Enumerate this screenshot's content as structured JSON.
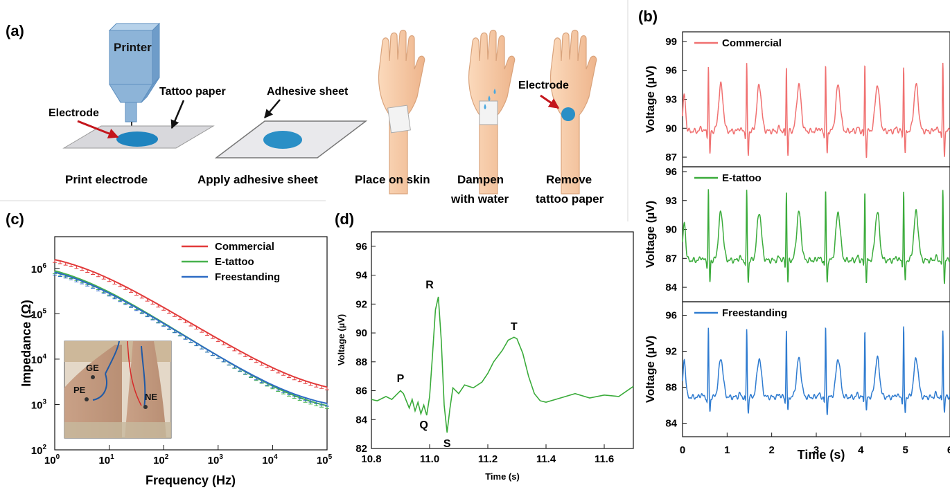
{
  "panel_labels": {
    "a": "(a)",
    "b": "(b)",
    "c": "(c)",
    "d": "(d)"
  },
  "panel_a": {
    "printer_label": "Printer",
    "tattoo_paper_label": "Tattoo paper",
    "electrode_label": "Electrode",
    "adhesive_sheet_label": "Adhesive sheet",
    "electrode_label_2": "Electrode",
    "steps": [
      {
        "line1": "Print electrode",
        "line2": ""
      },
      {
        "line1": "Apply adhesive sheet",
        "line2": ""
      },
      {
        "line1": "Place on skin",
        "line2": ""
      },
      {
        "line1": "Dampen",
        "line2": "with water"
      },
      {
        "line1": "Remove",
        "line2": "tattoo paper"
      }
    ],
    "colors": {
      "printer": "#8db4d8",
      "electrode": "#2a8fc6",
      "skin": "#f6cba6",
      "arrow": "#c4161c"
    }
  },
  "chart_data": [
    {
      "panel": "b",
      "type": "line",
      "xlabel": "Time (s)",
      "ylabel": "Voltage (µV)",
      "xlim": [
        0,
        6
      ],
      "xticks": [
        "0",
        "1",
        "2",
        "3",
        "4",
        "5",
        "6"
      ],
      "beat_times_s": [
        0.13,
        0.58,
        1.44,
        2.33,
        3.21,
        4.09,
        4.96,
        5.84
      ],
      "series": [
        {
          "name": "Commercial",
          "color": "#f07070",
          "ylim": [
            86,
            100
          ],
          "yticks": [
            "87",
            "90",
            "93",
            "96",
            "99"
          ],
          "baseline": 89.7,
          "r_peak": 96.5,
          "s_min": 87.2,
          "t_peak": 94.5
        },
        {
          "name": "E-tattoo",
          "color": "#3aab3a",
          "ylim": [
            82.5,
            96.5
          ],
          "yticks": [
            "84",
            "87",
            "90",
            "93",
            "96"
          ],
          "baseline": 86.8,
          "r_peak": 94.0,
          "s_min": 84.5,
          "t_peak": 91.8
        },
        {
          "name": "Freestanding",
          "color": "#2e7bd0",
          "ylim": [
            82.5,
            97.5
          ],
          "yticks": [
            "84",
            "88",
            "92",
            "96"
          ],
          "baseline": 86.9,
          "r_peak": 94.5,
          "s_min": 85.2,
          "t_peak": 91.2
        }
      ]
    },
    {
      "panel": "c",
      "type": "line",
      "xlabel": "Frequency (Hz)",
      "ylabel": "Impedance (Ω)",
      "x_scale": "log",
      "y_scale": "log",
      "xlim": [
        1,
        100000
      ],
      "ylim": [
        100,
        5000000
      ],
      "xticks": [
        "1",
        "10",
        "100",
        "1000",
        "10000",
        "100000"
      ],
      "yticks": [
        "100",
        "1000",
        "10000",
        "100000",
        "1000000"
      ],
      "legend": "top-right",
      "series": [
        {
          "name": "Commercial",
          "color": "#e23a3a",
          "r_inf": 1500,
          "r_ct": 2500000,
          "f_c": 2.0,
          "alpha": 0.73
        },
        {
          "name": "E-tattoo",
          "color": "#47b24d",
          "r_inf": 600,
          "r_ct": 1500000,
          "f_c": 1.6,
          "alpha": 0.76
        },
        {
          "name": "Freestanding",
          "color": "#2d6bc4",
          "r_inf": 700,
          "r_ct": 1400000,
          "f_c": 1.6,
          "alpha": 0.75
        }
      ],
      "inset_labels": [
        "GE",
        "PE",
        "NE"
      ]
    },
    {
      "panel": "d",
      "type": "line",
      "xlabel": "Time (s)",
      "ylabel": "Voltage (µV)",
      "xlim": [
        10.8,
        11.7
      ],
      "ylim": [
        82,
        97
      ],
      "xticks": [
        "10.8",
        "11.0",
        "11.2",
        "11.4",
        "11.6"
      ],
      "yticks": [
        "82",
        "84",
        "86",
        "88",
        "90",
        "92",
        "94",
        "96"
      ],
      "series": [
        {
          "name": "",
          "color": "#3aab3a",
          "x": [
            10.8,
            10.82,
            10.85,
            10.87,
            10.89,
            10.9,
            10.91,
            10.93,
            10.94,
            10.95,
            10.96,
            10.97,
            10.98,
            10.99,
            11.0,
            11.01,
            11.02,
            11.03,
            11.04,
            11.05,
            11.06,
            11.07,
            11.08,
            11.1,
            11.12,
            11.15,
            11.18,
            11.2,
            11.22,
            11.25,
            11.27,
            11.29,
            11.3,
            11.32,
            11.34,
            11.36,
            11.38,
            11.4,
            11.45,
            11.5,
            11.55,
            11.6,
            11.65,
            11.7
          ],
          "y": [
            85.4,
            85.3,
            85.6,
            85.4,
            85.8,
            86.0,
            85.8,
            84.8,
            85.4,
            84.6,
            85.2,
            84.4,
            85.0,
            84.3,
            85.6,
            88.5,
            91.6,
            92.5,
            89.5,
            85.0,
            83.1,
            84.8,
            86.2,
            85.8,
            86.4,
            86.2,
            86.6,
            87.2,
            88.0,
            88.8,
            89.5,
            89.7,
            89.6,
            88.6,
            87.0,
            85.8,
            85.3,
            85.2,
            85.5,
            85.8,
            85.5,
            85.7,
            85.6,
            86.3
          ]
        }
      ],
      "annotations": [
        {
          "text": "P",
          "x": 10.9,
          "y": 86.6
        },
        {
          "text": "Q",
          "x": 10.98,
          "y": 83.4
        },
        {
          "text": "R",
          "x": 11.0,
          "y": 93.1
        },
        {
          "text": "S",
          "x": 11.06,
          "y": 82.1
        },
        {
          "text": "T",
          "x": 11.29,
          "y": 90.2
        }
      ]
    }
  ]
}
